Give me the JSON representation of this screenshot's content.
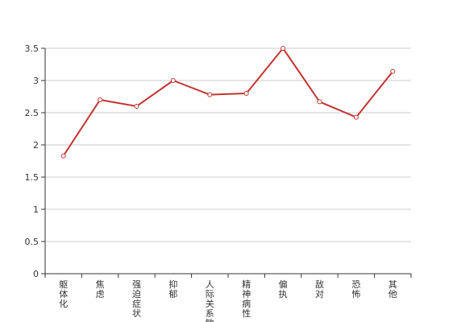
{
  "chart_data": {
    "type": "line",
    "title": "",
    "xlabel": "",
    "ylabel": "",
    "ylim": [
      0,
      3.5
    ],
    "yticks": [
      "0",
      "0.5",
      "1",
      "1.5",
      "2",
      "2.5",
      "3",
      "3.5"
    ],
    "categories": [
      "躯体化",
      "焦虑",
      "强迫症状",
      "抑郁",
      "人际关系敏感",
      "精神病性",
      "偏执",
      "敌对",
      "恐怖",
      "其他"
    ],
    "series": [
      {
        "values": [
          1.83,
          2.7,
          2.6,
          3.0,
          2.78,
          2.8,
          3.5,
          2.67,
          2.43,
          3.14
        ]
      }
    ],
    "grid": true,
    "legend": "none",
    "colors": {
      "line": "#c23531",
      "grid": "#cccccc",
      "axis": "#333333",
      "text": "#333333"
    }
  }
}
